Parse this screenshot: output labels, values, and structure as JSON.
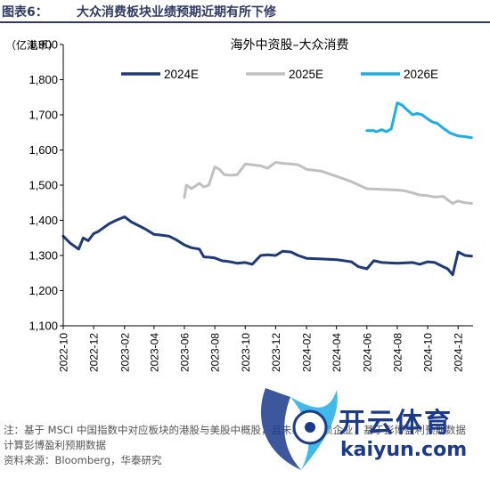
{
  "header": {
    "figure_label": "图表6：",
    "figure_title": "大众消费板块业绩预期近期有所下修"
  },
  "chart_data": {
    "type": "line",
    "title": "海外中资股–大众消费",
    "ylabel": "（亿港币）",
    "ylim": [
      1100,
      1900
    ],
    "yticks": [
      1100,
      1200,
      1300,
      1400,
      1500,
      1600,
      1700,
      1800,
      1900
    ],
    "ytick_labels": [
      "1,100",
      "1,200",
      "1,300",
      "1,400",
      "1,500",
      "1,600",
      "1,700",
      "1,800",
      "1,900"
    ],
    "xlim": [
      "2022-10-01",
      "2024-12-31"
    ],
    "xtick_labels": [
      "2022-10",
      "2022-12",
      "2023-02",
      "2023-04",
      "2023-06",
      "2023-08",
      "2023-10",
      "2023-12",
      "2024-02",
      "2024-04",
      "2024-06",
      "2024-08",
      "2024-10",
      "2024-12"
    ],
    "xtick_dates": [
      "2022-10-01",
      "2022-12-01",
      "2023-02-01",
      "2023-04-01",
      "2023-06-01",
      "2023-08-01",
      "2023-10-01",
      "2023-12-01",
      "2024-02-01",
      "2024-04-01",
      "2024-06-01",
      "2024-08-01",
      "2024-10-01",
      "2024-12-01"
    ],
    "grid": false,
    "legend_position": "top",
    "series": [
      {
        "name": "2024E",
        "color": "#1f3a7a",
        "x": [
          "2022-10-01",
          "2022-10-15",
          "2022-11-01",
          "2022-11-10",
          "2022-11-20",
          "2022-12-01",
          "2022-12-10",
          "2023-01-01",
          "2023-01-15",
          "2023-02-01",
          "2023-02-15",
          "2023-03-01",
          "2023-03-15",
          "2023-04-01",
          "2023-04-15",
          "2023-05-01",
          "2023-05-15",
          "2023-06-01",
          "2023-06-15",
          "2023-07-01",
          "2023-07-10",
          "2023-07-20",
          "2023-08-01",
          "2023-08-15",
          "2023-09-01",
          "2023-09-15",
          "2023-10-01",
          "2023-10-15",
          "2023-11-01",
          "2023-11-15",
          "2023-12-01",
          "2023-12-15",
          "2024-01-01",
          "2024-01-15",
          "2024-02-01",
          "2024-03-01",
          "2024-04-01",
          "2024-05-01",
          "2024-05-15",
          "2024-06-01",
          "2024-06-15",
          "2024-07-01",
          "2024-08-01",
          "2024-09-01",
          "2024-09-15",
          "2024-10-01",
          "2024-10-15",
          "2024-11-01",
          "2024-11-10",
          "2024-11-20",
          "2024-12-01",
          "2024-12-15",
          "2024-12-28"
        ],
        "values": [
          1355,
          1335,
          1318,
          1350,
          1342,
          1362,
          1368,
          1390,
          1400,
          1410,
          1395,
          1385,
          1375,
          1360,
          1358,
          1355,
          1345,
          1330,
          1322,
          1318,
          1296,
          1295,
          1293,
          1285,
          1282,
          1278,
          1280,
          1275,
          1300,
          1302,
          1300,
          1312,
          1310,
          1300,
          1292,
          1290,
          1288,
          1282,
          1268,
          1262,
          1285,
          1280,
          1278,
          1280,
          1275,
          1282,
          1280,
          1268,
          1262,
          1245,
          1310,
          1300,
          1298
        ]
      },
      {
        "name": "2025E",
        "color": "#c0c0c0",
        "x": [
          "2023-06-01",
          "2023-06-05",
          "2023-06-15",
          "2023-07-01",
          "2023-07-10",
          "2023-07-20",
          "2023-08-01",
          "2023-08-10",
          "2023-08-20",
          "2023-09-01",
          "2023-09-15",
          "2023-10-01",
          "2023-10-15",
          "2023-11-01",
          "2023-11-15",
          "2023-12-01",
          "2023-12-15",
          "2024-01-01",
          "2024-01-15",
          "2024-02-01",
          "2024-03-01",
          "2024-04-01",
          "2024-05-01",
          "2024-06-01",
          "2024-07-01",
          "2024-08-01",
          "2024-08-15",
          "2024-09-01",
          "2024-09-15",
          "2024-10-01",
          "2024-10-15",
          "2024-11-01",
          "2024-11-10",
          "2024-11-20",
          "2024-12-01",
          "2024-12-15",
          "2024-12-28"
        ],
        "values": [
          1465,
          1500,
          1490,
          1505,
          1495,
          1500,
          1552,
          1545,
          1530,
          1528,
          1530,
          1560,
          1558,
          1555,
          1548,
          1565,
          1562,
          1560,
          1558,
          1545,
          1540,
          1525,
          1510,
          1490,
          1488,
          1486,
          1484,
          1478,
          1472,
          1470,
          1466,
          1468,
          1458,
          1448,
          1455,
          1450,
          1448
        ]
      },
      {
        "name": "2026E",
        "color": "#1eaee6",
        "x": [
          "2024-06-01",
          "2024-06-15",
          "2024-06-20",
          "2024-07-01",
          "2024-07-10",
          "2024-07-20",
          "2024-08-01",
          "2024-08-10",
          "2024-08-20",
          "2024-09-01",
          "2024-09-10",
          "2024-09-20",
          "2024-10-01",
          "2024-10-10",
          "2024-10-20",
          "2024-11-01",
          "2024-11-15",
          "2024-12-01",
          "2024-12-15",
          "2024-12-28"
        ],
        "values": [
          1655,
          1655,
          1652,
          1658,
          1652,
          1660,
          1734,
          1728,
          1715,
          1700,
          1704,
          1700,
          1688,
          1680,
          1676,
          1662,
          1648,
          1640,
          1638,
          1635
        ]
      }
    ]
  },
  "notes": {
    "line1": "注：基于 MSCI 中国指数中对应板块的港股与美股中概股，且未剔除亏损企业，基于彭博盈利预期数据",
    "line2": "计算彭博盈利预期数据",
    "source": "资料来源：Bloomberg，华泰研究"
  },
  "watermark": {
    "brand_cn": "开云体育",
    "brand_url": "kaiyun.com"
  }
}
